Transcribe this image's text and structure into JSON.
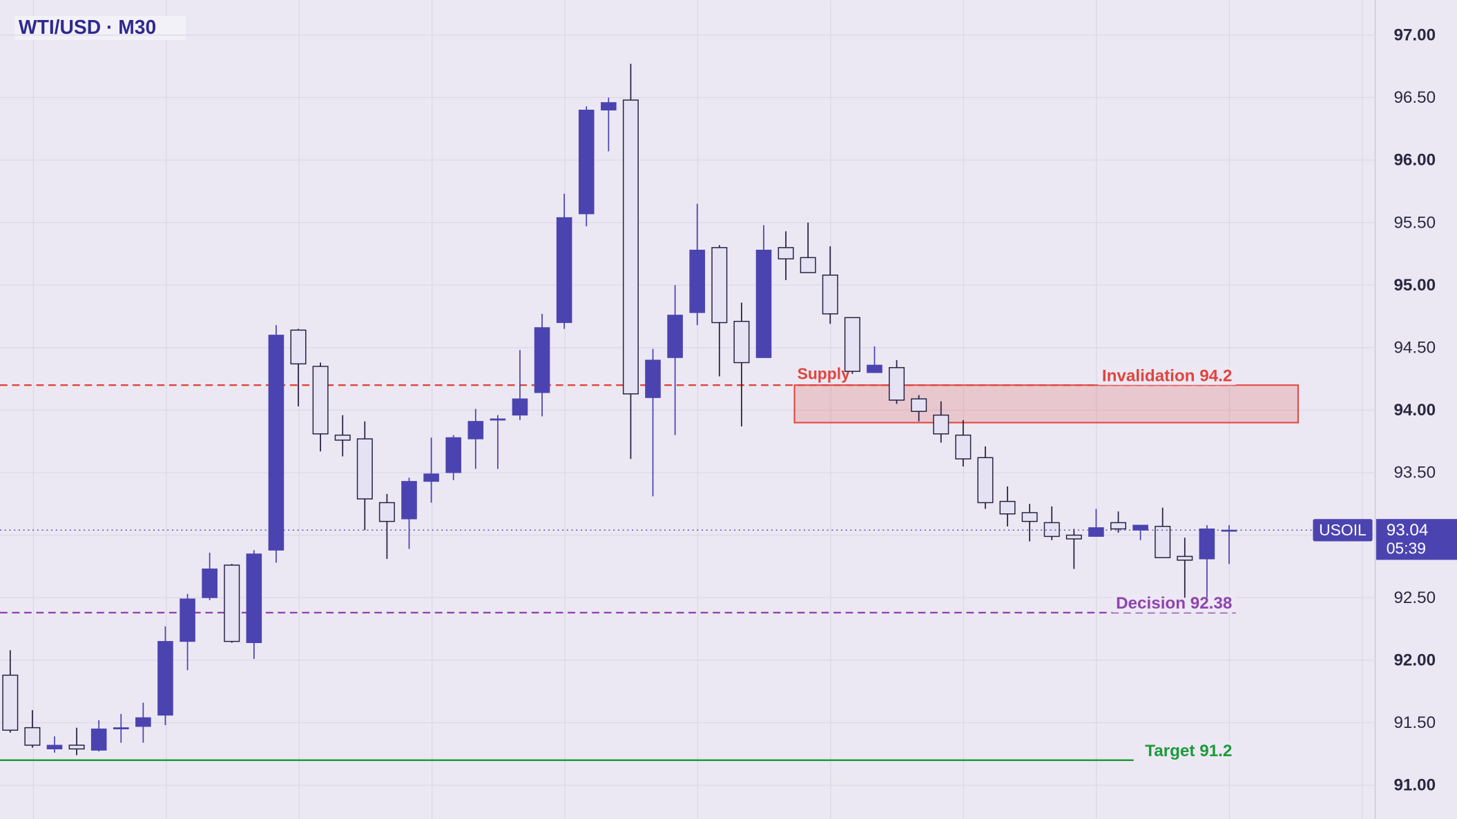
{
  "chart_data": {
    "type": "candlestick",
    "title": "WTI/USD · M30",
    "ylim": [
      90.73,
      97.28
    ],
    "yticks": [
      {
        "value": 91,
        "label": "91.00"
      },
      {
        "value": 91.5,
        "label": "91.50"
      },
      {
        "value": 92,
        "label": "92.00"
      },
      {
        "value": 92.5,
        "label": "92.50"
      },
      {
        "value": 93,
        "label": "93.00"
      },
      {
        "value": 93.5,
        "label": "93.50"
      },
      {
        "value": 94,
        "label": "94.00"
      },
      {
        "value": 94.5,
        "label": "94.50"
      },
      {
        "value": 95,
        "label": "95.00"
      },
      {
        "value": 95.5,
        "label": "95.50"
      },
      {
        "value": 96,
        "label": "96.00"
      },
      {
        "value": 96.5,
        "label": "96.50"
      },
      {
        "value": 97,
        "label": "97.00"
      }
    ],
    "grid": true,
    "up_color": "#4b44b0",
    "down_color": "#e4e2f3",
    "wick_color": "#23213f",
    "ohlc": {
      "open": [
        91.88,
        91.46,
        91.29,
        91.32,
        91.28,
        91.45,
        91.47,
        91.56,
        92.15,
        92.5,
        92.76,
        92.14,
        92.88,
        94.64,
        94.35,
        93.8,
        93.77,
        93.26,
        93.13,
        93.43,
        93.5,
        93.77,
        93.92,
        93.96,
        94.14,
        94.7,
        95.57,
        96.4,
        96.48,
        94.1,
        94.42,
        94.78,
        95.3,
        94.71,
        94.42,
        95.3,
        95.22,
        95.08,
        94.74,
        94.3,
        94.34,
        94.09,
        93.96,
        93.8,
        93.62,
        93.27,
        93.18,
        93.1,
        93.0,
        92.99,
        93.1,
        93.04,
        93.07,
        92.83,
        92.81,
        93.04
      ],
      "high": [
        92.08,
        91.6,
        91.39,
        91.46,
        91.52,
        91.57,
        91.66,
        92.27,
        92.53,
        92.86,
        92.77,
        92.88,
        94.68,
        94.65,
        94.38,
        93.96,
        93.91,
        93.33,
        93.46,
        93.78,
        93.8,
        94.01,
        93.96,
        94.48,
        94.77,
        95.73,
        96.43,
        96.5,
        96.77,
        94.49,
        95.0,
        95.65,
        95.32,
        94.86,
        95.48,
        95.43,
        95.5,
        95.31,
        94.74,
        94.51,
        94.4,
        94.12,
        94.07,
        93.92,
        93.71,
        93.39,
        93.25,
        93.23,
        93.05,
        93.21,
        93.19,
        93.08,
        93.22,
        92.98,
        93.08,
        93.08
      ],
      "low": [
        91.42,
        91.3,
        91.26,
        91.24,
        91.27,
        91.34,
        91.34,
        91.48,
        91.92,
        92.48,
        92.14,
        92.01,
        92.78,
        94.03,
        93.67,
        93.63,
        93.04,
        92.81,
        92.89,
        93.26,
        93.44,
        93.53,
        93.53,
        93.92,
        93.95,
        94.65,
        95.47,
        96.07,
        93.61,
        93.31,
        93.8,
        94.68,
        94.27,
        93.87,
        94.42,
        95.04,
        95.1,
        94.69,
        94.29,
        94.3,
        94.05,
        93.91,
        93.74,
        93.55,
        93.21,
        93.07,
        92.95,
        92.96,
        92.73,
        92.99,
        93.02,
        92.96,
        92.82,
        92.5,
        92.5,
        92.77
      ],
      "close": [
        91.44,
        91.32,
        91.32,
        91.29,
        91.45,
        91.46,
        91.54,
        92.15,
        92.49,
        92.73,
        92.15,
        92.85,
        94.6,
        94.37,
        93.81,
        93.76,
        93.29,
        93.11,
        93.43,
        93.49,
        93.78,
        93.91,
        93.93,
        94.09,
        94.66,
        95.54,
        96.4,
        96.46,
        94.13,
        94.4,
        94.76,
        95.28,
        94.7,
        94.38,
        95.28,
        95.21,
        95.1,
        94.77,
        94.31,
        94.36,
        94.08,
        93.99,
        93.81,
        93.61,
        93.26,
        93.17,
        93.11,
        92.99,
        92.97,
        93.06,
        93.05,
        93.08,
        92.82,
        92.8,
        93.05,
        93.04
      ]
    },
    "levels": [
      {
        "label": "Invalidation 94.2",
        "value": 94.2,
        "color": "#e0443c",
        "style": "dashed"
      },
      {
        "label": "Decision 92.38",
        "value": 92.38,
        "color": "#8e44ad",
        "style": "dashed"
      },
      {
        "label": "Target 91.2",
        "value": 91.2,
        "color": "#1a9b3a",
        "style": "solid"
      }
    ],
    "zone": {
      "label": "Supply",
      "range": [
        93.9,
        94.2
      ],
      "color": "#e0443c"
    },
    "last": {
      "symbol": "USOIL",
      "value": 93.04,
      "countdown": "05:39",
      "color": "#4b44b0"
    }
  }
}
